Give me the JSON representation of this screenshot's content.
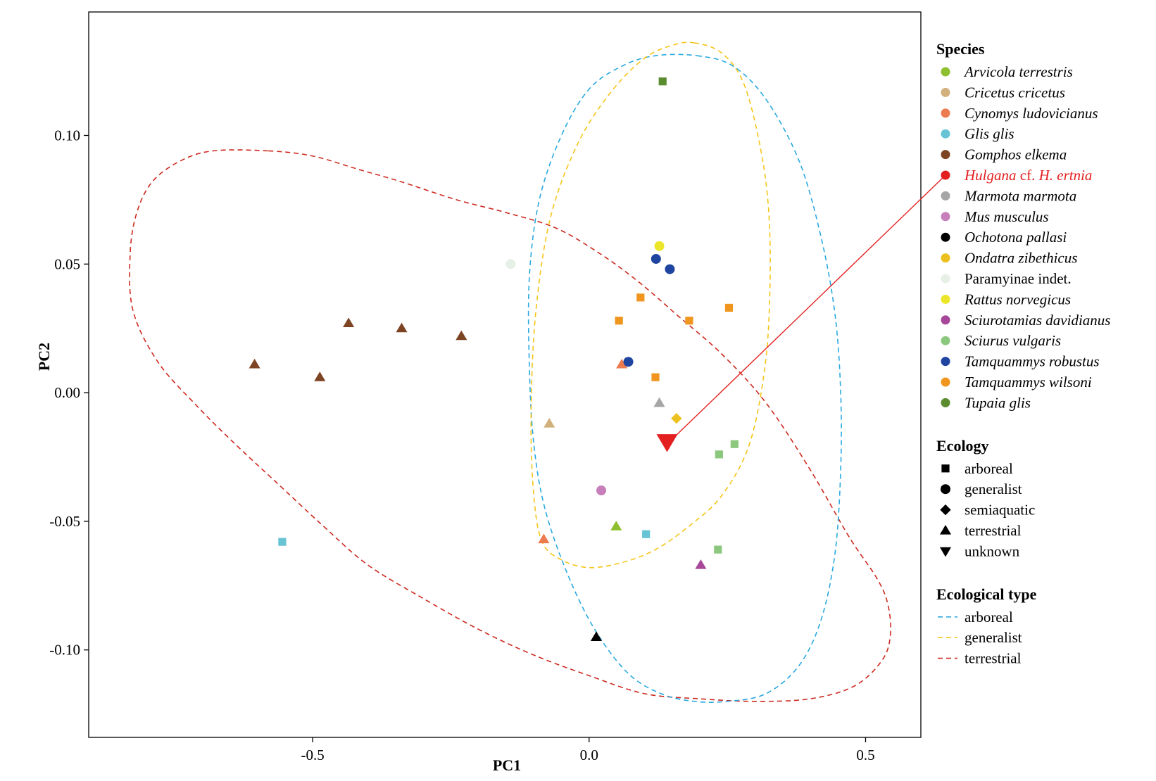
{
  "chart_data": {
    "type": "scatter",
    "xlabel": "PC1",
    "ylabel": "PC2",
    "xlim": [
      -0.905,
      0.6
    ],
    "ylim": [
      -0.134,
      0.148
    ],
    "x_ticks": [
      {
        "value": -0.5,
        "label": "-0.5"
      },
      {
        "value": 0.0,
        "label": "0.0"
      },
      {
        "value": 0.5,
        "label": "0.5"
      }
    ],
    "y_ticks": [
      {
        "value": 0.1,
        "label": "0.10"
      },
      {
        "value": 0.05,
        "label": "0.05"
      },
      {
        "value": 0.0,
        "label": "0.00"
      },
      {
        "value": -0.05,
        "label": "-0.05"
      },
      {
        "value": -0.1,
        "label": "-0.10"
      }
    ],
    "grid": false,
    "legend_placement": "right",
    "species_legend": {
      "title": "Species",
      "items": [
        {
          "name": "Arvicola terrestris",
          "color": "#8dbf2f",
          "italic": true
        },
        {
          "name": "Cricetus cricetus",
          "color": "#d2b07c",
          "italic": true
        },
        {
          "name": "Cynomys ludovicianus",
          "color": "#ec7b4f",
          "italic": true
        },
        {
          "name": "Glis glis",
          "color": "#68c3d4",
          "italic": true
        },
        {
          "name": "Gomphos elkema",
          "color": "#7d4424",
          "italic": true
        },
        {
          "name": "Hulgana cf. H. ertnia",
          "color": "#e41f1f",
          "italic": true,
          "highlight": true,
          "parts": [
            {
              "text": "Hulgana",
              "italic": true
            },
            {
              "text": " cf. ",
              "italic": false
            },
            {
              "text": "H. ertnia",
              "italic": true
            }
          ]
        },
        {
          "name": "Marmota marmota",
          "color": "#a6a6a6",
          "italic": true
        },
        {
          "name": "Mus musculus",
          "color": "#c67fba",
          "italic": true
        },
        {
          "name": "Ochotona pallasi",
          "color": "#000000",
          "italic": true
        },
        {
          "name": "Ondatra zibethicus",
          "color": "#ecc11f",
          "italic": true
        },
        {
          "name": "Paramyinae indet.",
          "color": "#e6f0e6",
          "italic": false
        },
        {
          "name": "Rattus norvegicus",
          "color": "#ece62a",
          "italic": true
        },
        {
          "name": "Sciurotamias davidianus",
          "color": "#a6479a",
          "italic": true
        },
        {
          "name": "Sciurus vulgaris",
          "color": "#8cc77e",
          "italic": true
        },
        {
          "name": "Tamquammys robustus",
          "color": "#1f45a1",
          "italic": true
        },
        {
          "name": "Tamquammys wilsoni",
          "color": "#f0961f",
          "italic": true
        },
        {
          "name": "Tupaia glis",
          "color": "#5b8c30",
          "italic": true
        }
      ]
    },
    "ecology_legend": {
      "title": "Ecology",
      "items": [
        {
          "name": "arboreal",
          "shape": "square"
        },
        {
          "name": "generalist",
          "shape": "circle"
        },
        {
          "name": "semiaquatic",
          "shape": "diamond"
        },
        {
          "name": "terrestrial",
          "shape": "triangle"
        },
        {
          "name": "unknown",
          "shape": "triangle-down"
        }
      ]
    },
    "ellipse_legend": {
      "title": "Ecological type",
      "items": [
        {
          "name": "arboreal",
          "color": "#2aa9e0"
        },
        {
          "name": "generalist",
          "color": "#f5c518"
        },
        {
          "name": "terrestrial",
          "color": "#cc2a1f"
        }
      ]
    },
    "points": [
      {
        "species": "Gomphos elkema",
        "shape": "triangle",
        "x": -0.605,
        "y": 0.011
      },
      {
        "species": "Gomphos elkema",
        "shape": "triangle",
        "x": -0.487,
        "y": 0.006
      },
      {
        "species": "Gomphos elkema",
        "shape": "triangle",
        "x": -0.435,
        "y": 0.027
      },
      {
        "species": "Gomphos elkema",
        "shape": "triangle",
        "x": -0.339,
        "y": 0.025
      },
      {
        "species": "Gomphos elkema",
        "shape": "triangle",
        "x": -0.231,
        "y": 0.022
      },
      {
        "species": "Glis glis",
        "shape": "square",
        "x": -0.555,
        "y": -0.058
      },
      {
        "species": "Glis glis",
        "shape": "square",
        "x": 0.103,
        "y": -0.055
      },
      {
        "species": "Paramyinae indet.",
        "shape": "circle",
        "x": -0.142,
        "y": 0.05
      },
      {
        "species": "Cricetus cricetus",
        "shape": "triangle",
        "x": -0.072,
        "y": -0.012
      },
      {
        "species": "Cynomys ludovicianus",
        "shape": "triangle",
        "x": -0.082,
        "y": -0.057
      },
      {
        "species": "Cynomys ludovicianus",
        "shape": "triangle",
        "x": 0.059,
        "y": 0.011
      },
      {
        "species": "Mus musculus",
        "shape": "circle",
        "x": 0.022,
        "y": -0.038
      },
      {
        "species": "Arvicola terrestris",
        "shape": "triangle",
        "x": 0.049,
        "y": -0.052
      },
      {
        "species": "Ochotona pallasi",
        "shape": "triangle",
        "x": 0.013,
        "y": -0.095
      },
      {
        "species": "Tamquammys robustus",
        "shape": "circle",
        "x": 0.071,
        "y": 0.012
      },
      {
        "species": "Tamquammys robustus",
        "shape": "circle",
        "x": 0.121,
        "y": 0.052
      },
      {
        "species": "Tamquammys robustus",
        "shape": "circle",
        "x": 0.146,
        "y": 0.048
      },
      {
        "species": "Rattus norvegicus",
        "shape": "circle",
        "x": 0.127,
        "y": 0.057
      },
      {
        "species": "Tamquammys wilsoni",
        "shape": "square",
        "x": 0.054,
        "y": 0.028
      },
      {
        "species": "Tamquammys wilsoni",
        "shape": "square",
        "x": 0.093,
        "y": 0.037
      },
      {
        "species": "Tamquammys wilsoni",
        "shape": "square",
        "x": 0.12,
        "y": 0.006
      },
      {
        "species": "Tamquammys wilsoni",
        "shape": "square",
        "x": 0.181,
        "y": 0.028
      },
      {
        "species": "Tamquammys wilsoni",
        "shape": "square",
        "x": 0.253,
        "y": 0.033
      },
      {
        "species": "Marmota marmota",
        "shape": "triangle",
        "x": 0.127,
        "y": -0.004
      },
      {
        "species": "Ondatra zibethicus",
        "shape": "diamond",
        "x": 0.158,
        "y": -0.01
      },
      {
        "species": "Sciurus vulgaris",
        "shape": "square",
        "x": 0.235,
        "y": -0.024
      },
      {
        "species": "Sciurus vulgaris",
        "shape": "square",
        "x": 0.263,
        "y": -0.02
      },
      {
        "species": "Sciurus vulgaris",
        "shape": "square",
        "x": 0.233,
        "y": -0.061
      },
      {
        "species": "Sciurotamias davidianus",
        "shape": "triangle",
        "x": 0.202,
        "y": -0.067
      },
      {
        "species": "Tupaia glis",
        "shape": "square",
        "x": 0.133,
        "y": 0.121
      },
      {
        "species": "Hulgana cf. H. ertnia",
        "shape": "triangle-down",
        "x": 0.141,
        "y": -0.019,
        "large": true
      }
    ],
    "ellipses": [
      {
        "type": "terrestrial",
        "color": "#cc2a1f",
        "outline": [
          [
            -0.58,
            0.094
          ],
          [
            -0.5,
            0.092
          ],
          [
            -0.42,
            0.087
          ],
          [
            -0.34,
            0.082
          ],
          [
            -0.24,
            0.075
          ],
          [
            -0.15,
            0.07
          ],
          [
            -0.06,
            0.064
          ],
          [
            0.02,
            0.054
          ],
          [
            0.09,
            0.043
          ],
          [
            0.16,
            0.03
          ],
          [
            0.24,
            0.015
          ],
          [
            0.32,
            -0.004
          ],
          [
            0.4,
            -0.03
          ],
          [
            0.47,
            -0.056
          ],
          [
            0.52,
            -0.072
          ],
          [
            0.54,
            -0.082
          ],
          [
            0.545,
            -0.094
          ],
          [
            0.53,
            -0.104
          ],
          [
            0.48,
            -0.114
          ],
          [
            0.4,
            -0.119
          ],
          [
            0.3,
            -0.12
          ],
          [
            0.2,
            -0.119
          ],
          [
            0.1,
            -0.117
          ],
          [
            0.0,
            -0.11
          ],
          [
            -0.1,
            -0.102
          ],
          [
            -0.2,
            -0.092
          ],
          [
            -0.3,
            -0.08
          ],
          [
            -0.4,
            -0.067
          ],
          [
            -0.48,
            -0.052
          ],
          [
            -0.56,
            -0.036
          ],
          [
            -0.64,
            -0.02
          ],
          [
            -0.71,
            -0.005
          ],
          [
            -0.78,
            0.012
          ],
          [
            -0.825,
            0.032
          ],
          [
            -0.83,
            0.054
          ],
          [
            -0.818,
            0.07
          ],
          [
            -0.79,
            0.082
          ],
          [
            -0.74,
            0.09
          ],
          [
            -0.68,
            0.094
          ]
        ]
      },
      {
        "type": "arboreal",
        "color": "#2aa9e0",
        "outline": [
          [
            0.195,
            0.131
          ],
          [
            0.26,
            0.127
          ],
          [
            0.32,
            0.114
          ],
          [
            0.38,
            0.09
          ],
          [
            0.42,
            0.06
          ],
          [
            0.445,
            0.03
          ],
          [
            0.455,
            0.0
          ],
          [
            0.455,
            -0.03
          ],
          [
            0.445,
            -0.062
          ],
          [
            0.42,
            -0.088
          ],
          [
            0.38,
            -0.106
          ],
          [
            0.32,
            -0.117
          ],
          [
            0.25,
            -0.12
          ],
          [
            0.19,
            -0.12
          ],
          [
            0.13,
            -0.117
          ],
          [
            0.07,
            -0.109
          ],
          [
            0.01,
            -0.092
          ],
          [
            -0.04,
            -0.07
          ],
          [
            -0.08,
            -0.045
          ],
          [
            -0.1,
            -0.02
          ],
          [
            -0.108,
            0.01
          ],
          [
            -0.108,
            0.045
          ],
          [
            -0.09,
            0.075
          ],
          [
            -0.05,
            0.1
          ],
          [
            0.0,
            0.118
          ],
          [
            0.06,
            0.127
          ],
          [
            0.12,
            0.131
          ]
        ]
      },
      {
        "type": "generalist",
        "color": "#f5c518",
        "outline": [
          [
            0.19,
            0.136
          ],
          [
            0.24,
            0.132
          ],
          [
            0.28,
            0.12
          ],
          [
            0.31,
            0.095
          ],
          [
            0.325,
            0.07
          ],
          [
            0.327,
            0.04
          ],
          [
            0.318,
            0.01
          ],
          [
            0.29,
            -0.02
          ],
          [
            0.24,
            -0.04
          ],
          [
            0.18,
            -0.052
          ],
          [
            0.12,
            -0.061
          ],
          [
            0.06,
            -0.066
          ],
          [
            0.0,
            -0.068
          ],
          [
            -0.05,
            -0.065
          ],
          [
            -0.085,
            -0.058
          ],
          [
            -0.1,
            -0.04
          ],
          [
            -0.105,
            -0.01
          ],
          [
            -0.097,
            0.03
          ],
          [
            -0.07,
            0.068
          ],
          [
            -0.02,
            0.097
          ],
          [
            0.04,
            0.117
          ],
          [
            0.1,
            0.13
          ],
          [
            0.15,
            0.135
          ]
        ]
      }
    ],
    "annotation": {
      "from": "Hulgana cf. H. ertnia",
      "point": [
        0.141,
        -0.019
      ],
      "color": "#e41f1f"
    }
  }
}
